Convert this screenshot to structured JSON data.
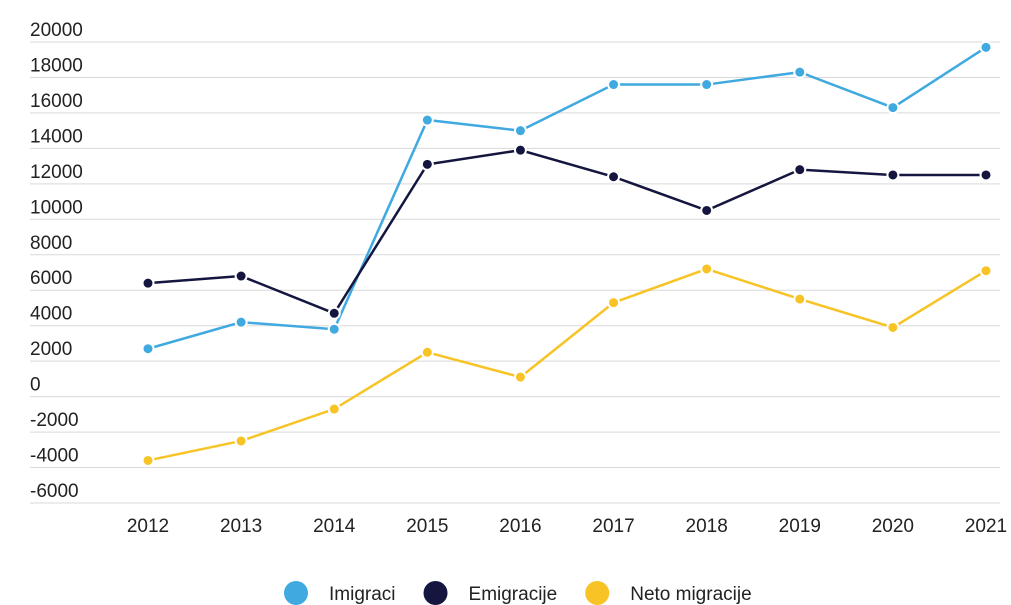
{
  "chart_data": {
    "type": "line",
    "categories": [
      "2012",
      "2013",
      "2014",
      "2015",
      "2016",
      "2017",
      "2018",
      "2019",
      "2020",
      "2021"
    ],
    "series": [
      {
        "name": "Imigraci",
        "color": "#3fa9e0",
        "values": [
          2700,
          4200,
          3800,
          15600,
          15000,
          17600,
          17600,
          18300,
          16300,
          19700
        ]
      },
      {
        "name": "Emigracije",
        "color": "#14163f",
        "values": [
          6400,
          6800,
          4700,
          13100,
          13900,
          12400,
          10500,
          12800,
          12500,
          12500
        ]
      },
      {
        "name": "Neto migracije",
        "color": "#f7c325",
        "values": [
          -3600,
          -2500,
          -700,
          2500,
          1100,
          5300,
          7200,
          5500,
          3900,
          7100
        ]
      }
    ],
    "ylim": [
      -6000,
      20000
    ],
    "yticks": [
      -6000,
      -4000,
      -2000,
      0,
      2000,
      4000,
      6000,
      8000,
      10000,
      12000,
      14000,
      16000,
      18000,
      20000
    ],
    "grid": true,
    "legend": "bottom"
  }
}
